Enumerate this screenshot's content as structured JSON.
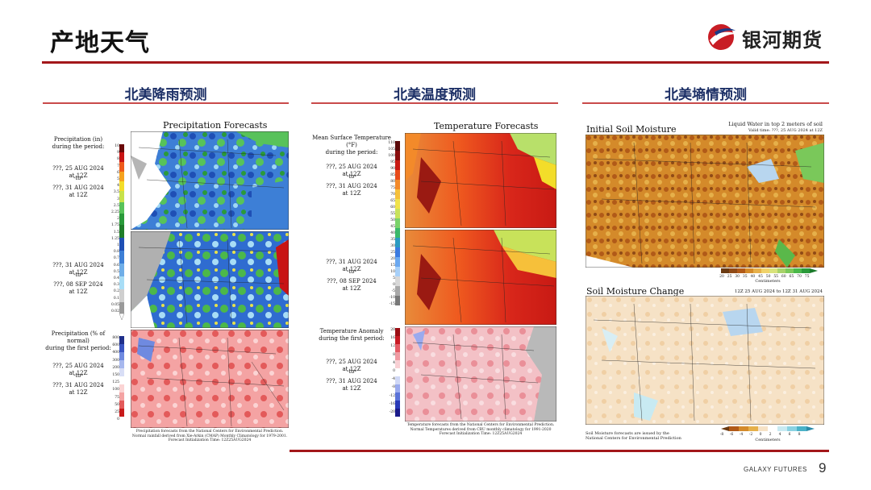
{
  "page": {
    "title": "产地天气",
    "logo_text": "银河期货",
    "footer_brand": "GALAXY FUTURES",
    "page_number": "9"
  },
  "sections": [
    {
      "title": "北美降雨预测"
    },
    {
      "title": "北美温度预测"
    },
    {
      "title": "北美墒情预测"
    }
  ],
  "precip": {
    "map_title": "Precipitation Forecasts",
    "label_period": "Precipitation (in)\nduring the period:",
    "p1_from": "???, 25 AUG 2024 at 12Z",
    "p1_to_word": "-to-",
    "p1_to": "???, 31 AUG 2024 at 12Z",
    "p2_from": "???, 31 AUG 2024 at 12Z",
    "p2_to_word": "-to-",
    "p2_to": "???, 08 SEP 2024 at 12Z",
    "label_anomaly": "Precipitation (% of normal)\nduring the first period:",
    "p3_from": "???, 25 AUG 2024 at 12Z",
    "p3_to_word": "-to-",
    "p3_to": "???, 31 AUG 2024 at 12Z",
    "scale_top": [
      "10",
      "9",
      "8",
      "7",
      "6",
      "5",
      "4",
      "3.5",
      "3",
      "2.5",
      "2.25",
      "2",
      "1.75",
      "1.5",
      "1.25",
      "1",
      "0.8",
      "0.7",
      "0.6",
      "0.5",
      "0.4",
      "0.3",
      "0.2",
      "0.1",
      "0.05",
      "0.02"
    ],
    "scale_anom": [
      "800",
      "600",
      "400",
      "300",
      "200",
      "150",
      "125",
      "100",
      "75",
      "50",
      "25",
      "0"
    ],
    "footnote": "Precipitation forecasts from the National Centers for Environmental Prediction.\nNormal rainfall derived from Xie-Arkin (CMAP) Monthly Climatology for 1979-2001.\nForecast Initialization Time: 12Z25AUG2024"
  },
  "temp": {
    "map_title": "Temperature Forecasts",
    "label_period": "Mean Surface Temperature (°F)\nduring the period:",
    "p1_from": "???, 25 AUG 2024 at 12Z",
    "p1_to_word": "-to-",
    "p1_to": "???, 31 AUG 2024 at 12Z",
    "p2_from": "???, 31 AUG 2024 at 12Z",
    "p2_to_word": "-to-",
    "p2_to": "???, 08 SEP 2024 at 12Z",
    "label_anomaly": "Temperature Anomaly\nduring the first period:",
    "p3_from": "???, 25 AUG 2024 at 12Z",
    "p3_to_word": "-to-",
    "p3_to": "???, 31 AUG 2024 at 12Z",
    "scale_top": [
      "110",
      "105",
      "100",
      "95",
      "90",
      "85",
      "80",
      "75",
      "70",
      "65",
      "60",
      "55",
      "50",
      "45",
      "40",
      "35",
      "30",
      "25",
      "20",
      "15",
      "10",
      "5",
      "0",
      "-5",
      "-10",
      "-15"
    ],
    "scale_anom": [
      "20",
      "16",
      "12",
      "8",
      "4",
      "0",
      "-4",
      "-8",
      "-12",
      "-16",
      "-20"
    ],
    "footnote": "Temperature forecasts from the National Centers for Environmental Prediction.\nNormal Temperatures derived from CRU monthly climatology for 1991-2020\nForecast Initialization Time: 12Z25AUG2024"
  },
  "soil": {
    "title1": "Initial Soil Moisture",
    "subtitle1": "Liquid Water in top 2 meters of soil",
    "valid1": "Valid time: ???, 25 AUG 2024 at 12Z",
    "scale1": [
      "20",
      "25",
      "30",
      "35",
      "40",
      "45",
      "50",
      "55",
      "60",
      "65",
      "70",
      "75"
    ],
    "units1": "Centimeters",
    "title2": "Soil Moisture Change",
    "subtitle2": "12Z 25 AUG 2024 to 12Z 31 AUG 2024",
    "scale2": [
      "-8",
      "-6",
      "-4",
      "-2",
      "0",
      "2",
      "4",
      "6",
      "8"
    ],
    "units2": "Centimeters",
    "footnote": "Soil Moisture forecasts are issued by the\nNational Centers for Environmental Prediction"
  },
  "colors": {
    "accent_red": "#a3171a",
    "section_blue": "#1c2f66"
  }
}
